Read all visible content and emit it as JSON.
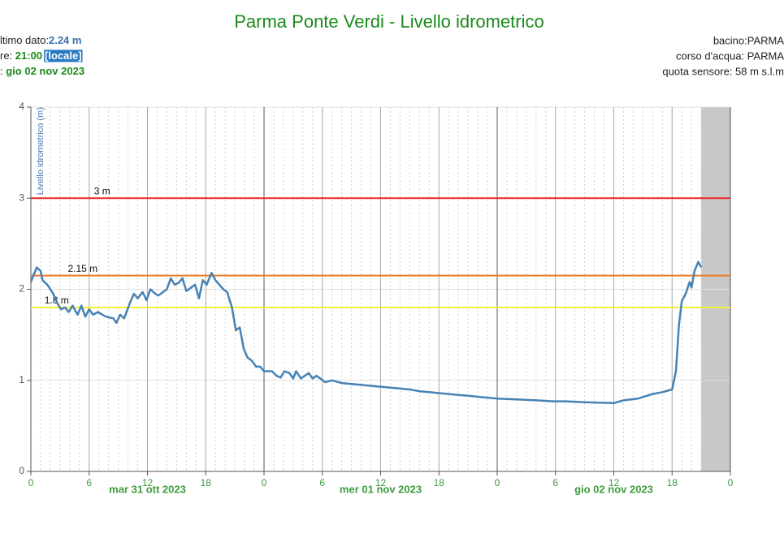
{
  "header": {
    "left": [
      [
        {
          "text": "ltimo dato:",
          "style": "plain"
        },
        {
          "text": "2.24 m",
          "style": "blue"
        }
      ],
      [
        {
          "text": "re: ",
          "style": "plain"
        },
        {
          "text": "21:00",
          "style": "green"
        },
        {
          "text": "[locale]",
          "style": "badge"
        }
      ],
      [
        {
          "text": ": ",
          "style": "plain"
        },
        {
          "text": "gio 02 nov 2023",
          "style": "green"
        }
      ]
    ],
    "right": [
      "bacino:PARMA",
      "corso d'acqua: PARMA",
      "quota sensore: 58 m s.l.m"
    ]
  },
  "chart_data": {
    "type": "line",
    "title": "Parma Ponte Verdi - Livello idrometrico",
    "y_label": "Livello idrometrico (m)",
    "xlim": [
      0,
      72
    ],
    "ylim": [
      0,
      4
    ],
    "yticks": [
      0,
      1,
      2,
      3,
      4
    ],
    "xticks": [
      0,
      6,
      12,
      18,
      {
        "value": 24,
        "label": "0"
      },
      {
        "value": 30,
        "label": "6"
      },
      {
        "value": 36,
        "label": "12"
      },
      {
        "value": 42,
        "label": "18"
      },
      {
        "value": 48,
        "label": "0"
      },
      {
        "value": 54,
        "label": "6"
      },
      {
        "value": 60,
        "label": "12"
      },
      {
        "value": 66,
        "label": "18"
      },
      {
        "value": 72,
        "label": "0"
      }
    ],
    "day_boundaries": [
      0,
      24,
      48,
      72
    ],
    "day_labels": [
      {
        "value": 12,
        "label": "mar 31 ott 2023"
      },
      {
        "value": 36,
        "label": "mer 01 nov 2023"
      },
      {
        "value": 60,
        "label": "gio 02 nov 2023"
      }
    ],
    "thresholds": [
      {
        "value": 3,
        "label": "3 m",
        "color": "#e8262b",
        "label_x": 6.5
      },
      {
        "value": 2.15,
        "label": "2.15 m",
        "color": "#f07a22",
        "label_x": 3.8
      },
      {
        "value": 1.8,
        "label": "1.8 m",
        "color": "#f2f23a",
        "label_x": 1.4
      }
    ],
    "shade_from": 69,
    "grid": true,
    "x": [
      0,
      0.6,
      1,
      1.2,
      1.7,
      2,
      2.3,
      2.7,
      3.1,
      3.5,
      3.9,
      4.3,
      4.8,
      5.2,
      5.6,
      6,
      6.4,
      6.9,
      7.7,
      8.5,
      8.8,
      9.2,
      9.6,
      10.2,
      10.6,
      11,
      11.5,
      11.9,
      12.3,
      12.7,
      13.1,
      14,
      14.4,
      14.8,
      15.2,
      15.6,
      16,
      16.9,
      17.3,
      17.7,
      18.1,
      18.6,
      19,
      19.4,
      19.8,
      20.2,
      20.7,
      21.1,
      21.5,
      21.9,
      22.3,
      22.7,
      23.2,
      23.6,
      24,
      24.8,
      25.3,
      25.7,
      26.1,
      26.6,
      27,
      27.3,
      27.8,
      28.6,
      29,
      29.4,
      30.3,
      31,
      32,
      33,
      34,
      35,
      36,
      37,
      38,
      39,
      40,
      41,
      42,
      43,
      44,
      45,
      46,
      47,
      48,
      50,
      52,
      53.7,
      55,
      57,
      60,
      61,
      62.5,
      64,
      65,
      66,
      66.4,
      66.7,
      67,
      67.4,
      67.8,
      68,
      68.3,
      68.7,
      69
    ],
    "series": [
      {
        "name": "Livello idrometrico",
        "color": "#4682b4",
        "values": [
          2.08,
          2.24,
          2.2,
          2.1,
          2.05,
          2.0,
          1.95,
          1.85,
          1.78,
          1.8,
          1.75,
          1.82,
          1.72,
          1.82,
          1.7,
          1.78,
          1.72,
          1.75,
          1.7,
          1.68,
          1.63,
          1.72,
          1.68,
          1.85,
          1.95,
          1.9,
          1.97,
          1.88,
          2.0,
          1.96,
          1.93,
          2.0,
          2.12,
          2.05,
          2.07,
          2.12,
          1.98,
          2.05,
          1.9,
          2.1,
          2.05,
          2.18,
          2.1,
          2.05,
          2.0,
          1.97,
          1.8,
          1.55,
          1.58,
          1.35,
          1.25,
          1.22,
          1.15,
          1.15,
          1.1,
          1.1,
          1.05,
          1.03,
          1.1,
          1.08,
          1.02,
          1.1,
          1.02,
          1.08,
          1.02,
          1.05,
          0.98,
          1.0,
          0.97,
          0.96,
          0.95,
          0.94,
          0.93,
          0.92,
          0.91,
          0.9,
          0.88,
          0.87,
          0.86,
          0.85,
          0.84,
          0.83,
          0.82,
          0.81,
          0.8,
          0.79,
          0.78,
          0.77,
          0.77,
          0.76,
          0.75,
          0.78,
          0.8,
          0.85,
          0.87,
          0.9,
          1.1,
          1.6,
          1.87,
          1.95,
          2.08,
          2.02,
          2.2,
          2.3,
          2.24
        ]
      }
    ]
  }
}
